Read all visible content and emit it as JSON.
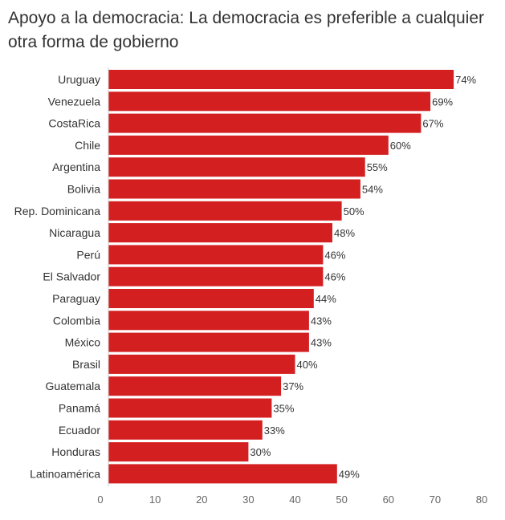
{
  "chart_data": {
    "type": "bar",
    "orientation": "horizontal",
    "title": "Apoyo a la democracia: La democracia es preferible a cualquier otra forma de gobierno",
    "categories": [
      "Uruguay",
      "Venezuela",
      "CostaRica",
      "Chile",
      "Argentina",
      "Bolivia",
      "Rep. Dominicana",
      "Nicaragua",
      "Perú",
      "El Salvador",
      "Paraguay",
      "Colombia",
      "México",
      "Brasil",
      "Guatemala",
      "Panamá",
      "Ecuador",
      "Honduras",
      "Latinoamérica"
    ],
    "values": [
      74,
      69,
      67,
      60,
      55,
      54,
      50,
      48,
      46,
      46,
      44,
      43,
      43,
      40,
      37,
      35,
      33,
      30,
      49
    ],
    "value_labels": [
      "74%",
      "69%",
      "67%",
      "60%",
      "55%",
      "54%",
      "50%",
      "48%",
      "46%",
      "46%",
      "44%",
      "43%",
      "43%",
      "40%",
      "37%",
      "35%",
      "33%",
      "30%",
      "49%"
    ],
    "xlim": [
      0,
      80
    ],
    "xticks": [
      "0",
      "10",
      "20",
      "30",
      "40",
      "50",
      "60",
      "70",
      "80"
    ],
    "xlabel": "",
    "ylabel": "",
    "grid": false,
    "bar_color": "#d41f21"
  }
}
